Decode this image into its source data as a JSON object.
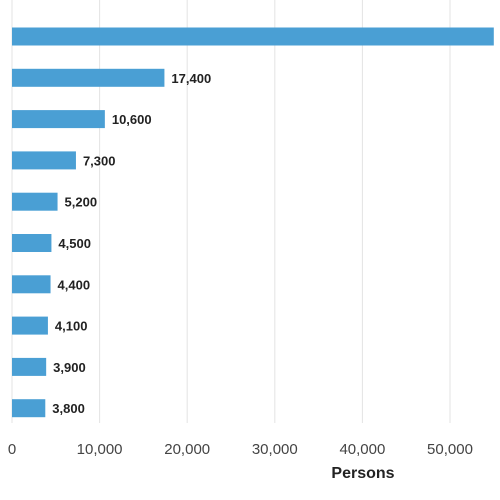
{
  "chart_data": {
    "type": "bar",
    "orientation": "horizontal",
    "xlabel": "Persons",
    "xlim": [
      0,
      55000
    ],
    "x_ticks": [
      0,
      10000,
      20000,
      30000,
      40000,
      50000
    ],
    "x_tick_labels": [
      "0",
      "10,000",
      "20,000",
      "30,000",
      "40,000",
      "50,000"
    ],
    "grid": true,
    "bar_color": "#4a9fd4",
    "values": [
      55000,
      17400,
      10600,
      7300,
      5200,
      4500,
      4400,
      4100,
      3900,
      3800
    ],
    "value_labels": [
      "",
      "17,400",
      "10,600",
      "7,300",
      "5,200",
      "4,500",
      "4,400",
      "4,100",
      "3,900",
      "3,800"
    ]
  }
}
